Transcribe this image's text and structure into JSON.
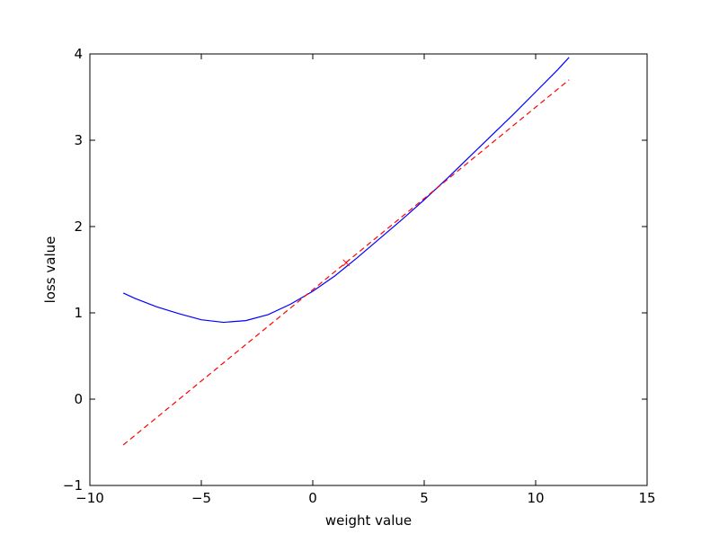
{
  "chart_data": {
    "type": "line",
    "xlabel": "weight value",
    "ylabel": "loss value",
    "xlim": [
      -10,
      15
    ],
    "ylim": [
      -1,
      4
    ],
    "xticks": [
      {
        "value": -10,
        "label": "−10"
      },
      {
        "value": -5,
        "label": "−5"
      },
      0,
      5,
      10,
      15
    ],
    "yticks": [
      {
        "value": -1,
        "label": "−1"
      },
      0,
      1,
      2,
      3,
      4
    ],
    "series": [
      {
        "color": "#0000ff",
        "linestyle": "solid",
        "x": [
          -8.5,
          -8,
          -7,
          -6,
          -5,
          -4,
          -3,
          -2,
          -1,
          0,
          1,
          2,
          3,
          4,
          5,
          6,
          7,
          8,
          9,
          10,
          11,
          11.5
        ],
        "values": [
          1.23,
          1.17,
          1.07,
          0.99,
          0.92,
          0.89,
          0.91,
          0.98,
          1.1,
          1.25,
          1.43,
          1.64,
          1.86,
          2.08,
          2.31,
          2.55,
          2.8,
          3.05,
          3.3,
          3.56,
          3.82,
          3.96
        ]
      },
      {
        "color": "#ff0000",
        "linestyle": "dashed",
        "x": [
          -8.5,
          11.5
        ],
        "values": [
          -0.53,
          3.7
        ]
      },
      {
        "color": "#ff0000",
        "linestyle": "none",
        "marker": "x",
        "x": [
          1.5
        ],
        "values": [
          1.58
        ]
      }
    ]
  }
}
